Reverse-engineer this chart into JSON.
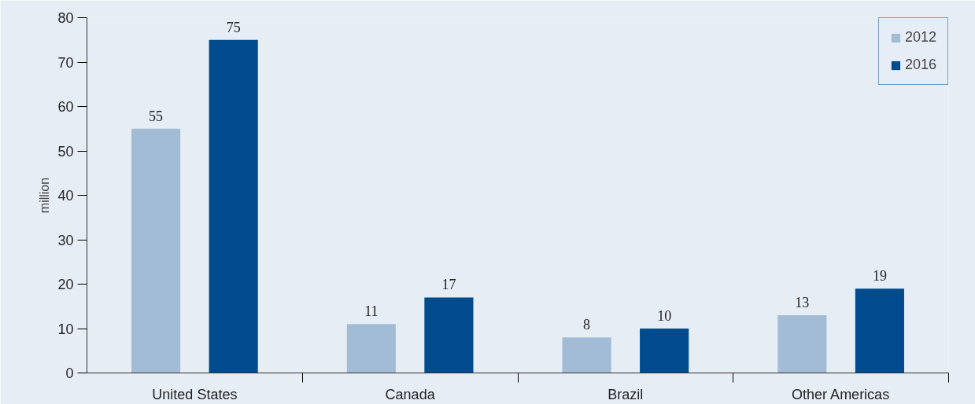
{
  "chart_data": {
    "type": "bar",
    "ylabel": "million",
    "categories": [
      "United States",
      "Canada",
      "Brazil",
      "Other Americas"
    ],
    "series": [
      {
        "name": "2012",
        "color": "#a3bcd6",
        "values": [
          55,
          11,
          8,
          13
        ]
      },
      {
        "name": "2016",
        "color": "#004b8d",
        "values": [
          75,
          17,
          10,
          19
        ]
      }
    ],
    "ylim": [
      0,
      80
    ],
    "yticks": [
      0,
      10,
      20,
      30,
      40,
      50,
      60,
      70,
      80
    ],
    "data_labels": true,
    "grid": false,
    "legend": "top right"
  }
}
